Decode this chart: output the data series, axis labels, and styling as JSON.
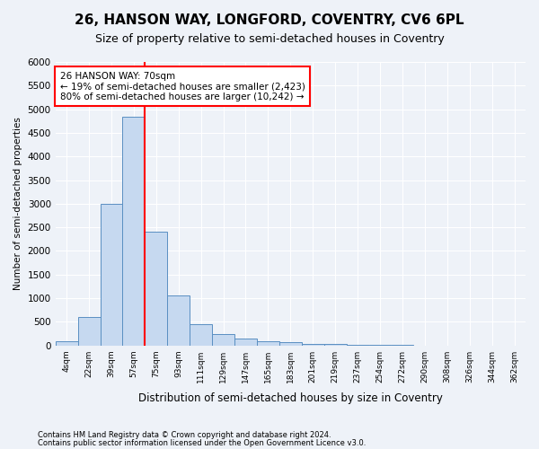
{
  "title": "26, HANSON WAY, LONGFORD, COVENTRY, CV6 6PL",
  "subtitle": "Size of property relative to semi-detached houses in Coventry",
  "xlabel": "Distribution of semi-detached houses by size in Coventry",
  "ylabel": "Number of semi-detached properties",
  "bin_labels": [
    "4sqm",
    "22sqm",
    "39sqm",
    "57sqm",
    "75sqm",
    "93sqm",
    "111sqm",
    "129sqm",
    "147sqm",
    "165sqm",
    "183sqm",
    "201sqm",
    "219sqm",
    "237sqm",
    "254sqm",
    "272sqm",
    "290sqm",
    "308sqm",
    "326sqm",
    "344sqm",
    "362sqm"
  ],
  "bin_values": [
    80,
    600,
    3000,
    4850,
    2400,
    1050,
    450,
    240,
    140,
    80,
    60,
    40,
    25,
    10,
    5,
    3,
    2,
    1,
    1,
    1,
    0
  ],
  "bar_color": "#c6d9f0",
  "bar_edge_color": "#5a8fc2",
  "vline_x_index": 3.5,
  "annotation_text": "26 HANSON WAY: 70sqm\n← 19% of semi-detached houses are smaller (2,423)\n80% of semi-detached houses are larger (10,242) →",
  "annotation_box_color": "white",
  "annotation_box_edge": "red",
  "vline_color": "red",
  "ylim": [
    0,
    6000
  ],
  "yticks": [
    0,
    500,
    1000,
    1500,
    2000,
    2500,
    3000,
    3500,
    4000,
    4500,
    5000,
    5500,
    6000
  ],
  "footer1": "Contains HM Land Registry data © Crown copyright and database right 2024.",
  "footer2": "Contains public sector information licensed under the Open Government Licence v3.0.",
  "title_fontsize": 11,
  "subtitle_fontsize": 9,
  "background_color": "#eef2f8"
}
